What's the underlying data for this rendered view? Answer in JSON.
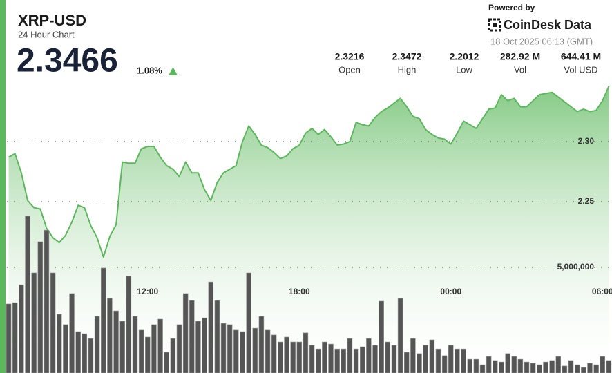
{
  "header": {
    "symbol": "XRP-USD",
    "subtitle": "24 Hour Chart",
    "price": "2.3466",
    "change": "1.08%",
    "powered_by": "Powered by",
    "brand": "CoinDesk Data",
    "timestamp": "18 Oct 2025 06:13 (GMT)"
  },
  "stats": [
    {
      "value": "2.3216",
      "label": "Open"
    },
    {
      "value": "2.3472",
      "label": "High"
    },
    {
      "value": "2.2012",
      "label": "Low"
    },
    {
      "value": "282.92 M",
      "label": "Vol"
    },
    {
      "value": "644.41 M",
      "label": "Vol USD"
    }
  ],
  "chart_data": {
    "type": "area",
    "categories": [
      null,
      null,
      null,
      null,
      null,
      null,
      null,
      null,
      null,
      null,
      null,
      null,
      null,
      null,
      null,
      null,
      null,
      null,
      null,
      null,
      null,
      null,
      "12:00",
      null,
      null,
      null,
      null,
      null,
      null,
      null,
      null,
      null,
      null,
      null,
      null,
      null,
      null,
      null,
      null,
      null,
      null,
      null,
      null,
      null,
      null,
      null,
      "18:00",
      null,
      null,
      null,
      null,
      null,
      null,
      null,
      null,
      null,
      null,
      null,
      null,
      null,
      null,
      null,
      null,
      null,
      null,
      null,
      null,
      null,
      null,
      null,
      "00:00",
      null,
      null,
      null,
      null,
      null,
      null,
      null,
      null,
      null,
      null,
      null,
      null,
      null,
      null,
      null,
      null,
      null,
      null,
      null,
      null,
      null,
      null,
      null,
      "06:00",
      null
    ],
    "series": [
      {
        "type": "area",
        "color": "#5cb85c",
        "values": [
          2.287,
          2.29,
          2.274,
          2.251,
          2.245,
          2.244,
          2.228,
          2.22,
          2.216,
          2.222,
          2.233,
          2.247,
          2.245,
          2.23,
          2.22,
          2.204,
          2.221,
          2.231,
          2.283,
          2.282,
          2.282,
          2.294,
          2.296,
          2.296,
          2.287,
          2.28,
          2.277,
          2.271,
          2.283,
          2.274,
          2.274,
          2.26,
          2.251,
          2.266,
          2.274,
          2.277,
          2.28,
          2.3,
          2.313,
          2.306,
          2.297,
          2.295,
          2.291,
          2.286,
          2.288,
          2.294,
          2.297,
          2.307,
          2.311,
          2.306,
          2.31,
          2.304,
          2.297,
          2.298,
          2.3,
          2.316,
          2.314,
          2.313,
          2.32,
          2.325,
          2.328,
          2.332,
          2.336,
          2.329,
          2.321,
          2.319,
          2.31,
          2.306,
          2.303,
          2.302,
          2.298,
          2.307,
          2.317,
          2.314,
          2.311,
          2.319,
          2.327,
          2.328,
          2.339,
          2.334,
          2.336,
          2.329,
          2.329,
          2.334,
          2.339,
          2.34,
          2.341,
          2.337,
          2.333,
          2.329,
          2.325,
          2.327,
          2.325,
          2.326,
          2.334,
          2.346
        ]
      },
      {
        "type": "bar",
        "axis": "y2",
        "color": "#555555",
        "values": [
          3270000,
          3330000,
          4180000,
          7420000,
          4740000,
          6210000,
          6760000,
          4740000,
          2780000,
          2290000,
          3760000,
          1960000,
          1860000,
          1630000,
          2680000,
          4970000,
          3530000,
          2940000,
          2450000,
          4580000,
          2680000,
          2030000,
          1700000,
          2290000,
          2550000,
          980000,
          1630000,
          2290000,
          3760000,
          3430000,
          2450000,
          2610000,
          4310000,
          3430000,
          2350000,
          2290000,
          2030000,
          1960000,
          4740000,
          2120000,
          2680000,
          2030000,
          1800000,
          1470000,
          1700000,
          1470000,
          1470000,
          1900000,
          1310000,
          1140000,
          1470000,
          1370000,
          1140000,
          1140000,
          1630000,
          1140000,
          1240000,
          1630000,
          1310000,
          3400000,
          1470000,
          1310000,
          3530000,
          980000,
          1630000,
          920000,
          1310000,
          1570000,
          1140000,
          820000,
          1310000,
          1140000,
          1140000,
          650000,
          650000,
          390000,
          780000,
          590000,
          520000,
          920000,
          780000,
          650000,
          520000,
          460000,
          390000,
          520000,
          590000,
          780000,
          330000,
          590000,
          390000,
          260000,
          460000,
          390000,
          780000,
          590000
        ]
      }
    ],
    "ylim": [
      2.15,
      2.35
    ],
    "yticks": [
      2.25,
      {
        "value": 2.3,
        "label": "2.30"
      }
    ],
    "y2lim": [
      0,
      15000000
    ],
    "y2ticks": [
      {
        "value": 5000000,
        "label": "5,000,000"
      }
    ],
    "grid": true
  }
}
